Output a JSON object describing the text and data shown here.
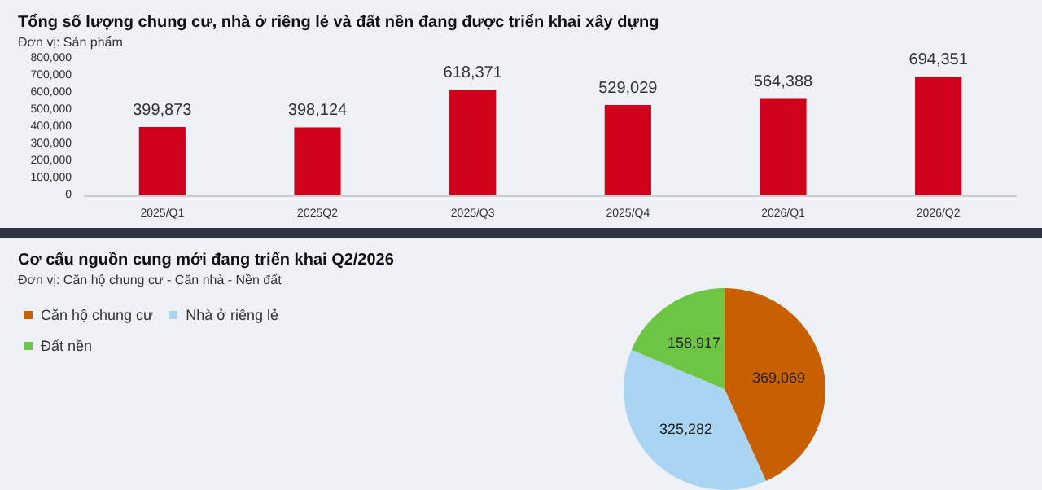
{
  "chart_data": [
    {
      "type": "bar",
      "title": "Tổng số lượng chung cư, nhà ở riêng lẻ và đất nền đang được triển khai xây dựng",
      "subtitle": "Đơn vị: Sản phẩm",
      "categories": [
        "2025/Q1",
        "2025Q2",
        "2025/Q3",
        "2025/Q4",
        "2026/Q1",
        "2026/Q2"
      ],
      "values": [
        399873,
        398124,
        618371,
        529029,
        564388,
        694351
      ],
      "value_labels": [
        "399,873",
        "398,124",
        "618,371",
        "529,029",
        "564,388",
        "694,351"
      ],
      "color": "#d0021b",
      "ylim": [
        0,
        800000
      ],
      "yticks": [
        0,
        {
          "value": 100000,
          "label": "100,000"
        },
        {
          "value": 200000,
          "label": "200,000"
        },
        {
          "value": 300000,
          "label": "300,000"
        },
        {
          "value": 400000,
          "label": "400,000"
        },
        {
          "value": 500000,
          "label": "500,000"
        },
        {
          "value": 600000,
          "label": "600,000"
        },
        {
          "value": 700000,
          "label": "700,000"
        },
        {
          "value": 800000,
          "label": "800,000"
        }
      ],
      "grid": false,
      "legend": false
    },
    {
      "type": "pie",
      "title": "Cơ cấu nguồn cung mới đang triển khai Q2/2026",
      "subtitle": "Đơn vị: Căn hộ chung cư - Căn nhà - Nền đất",
      "categories": [
        "Căn hộ chung cư",
        "Nhà ở riêng lẻ",
        "Đất nền"
      ],
      "values": [
        369069,
        325282,
        158917
      ],
      "value_labels": [
        "369,069",
        "325,282",
        "158,917"
      ],
      "colors": [
        "#c85f00",
        "#a9d4f2",
        "#6cc644"
      ],
      "legend": "top left"
    }
  ]
}
